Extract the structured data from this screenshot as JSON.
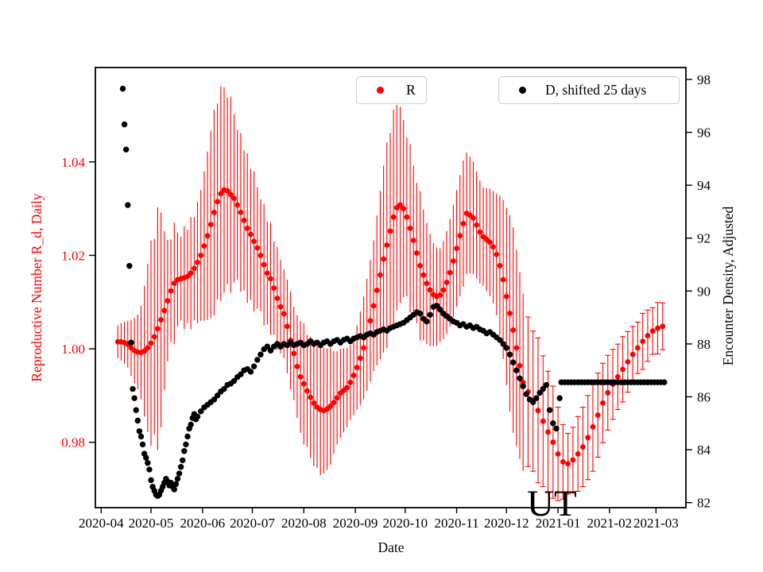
{
  "legend": {
    "r_label": "R",
    "d_label": "D, shifted 25 days"
  },
  "chart_data": {
    "type": "scatter",
    "title": "",
    "grid": false,
    "annotation": {
      "text": "UT",
      "t": 271.5
    },
    "axes": {
      "x": {
        "label": "Date",
        "range_t": [
          -3.5,
          352
        ],
        "ticks": [
          {
            "t": 0,
            "label": "2020-04"
          },
          {
            "t": 30,
            "label": "2020-05"
          },
          {
            "t": 61,
            "label": "2020-06"
          },
          {
            "t": 91,
            "label": "2020-07"
          },
          {
            "t": 122,
            "label": "2020-08"
          },
          {
            "t": 153,
            "label": "2020-09"
          },
          {
            "t": 183,
            "label": "2020-10"
          },
          {
            "t": 214,
            "label": "2020-11"
          },
          {
            "t": 244,
            "label": "2020-12"
          },
          {
            "t": 275,
            "label": "2021-01"
          },
          {
            "t": 306,
            "label": "2021-02"
          },
          {
            "t": 334,
            "label": "2021-03"
          }
        ]
      },
      "left": {
        "label": "Reproductive Number R_d, Daily",
        "color": "#ff0000",
        "range": [
          0.966,
          1.0602
        ],
        "ticks": [
          {
            "v": 0.98,
            "label": "0.98"
          },
          {
            "v": 1.0,
            "label": "1.00"
          },
          {
            "v": 1.02,
            "label": "1.02"
          },
          {
            "v": 1.04,
            "label": "1.04"
          }
        ]
      },
      "right": {
        "label": "Encounter Density, Adjusted",
        "color": "#000000",
        "range": [
          81.81,
          98.45
        ],
        "ticks": [
          {
            "v": 82,
            "label": "82"
          },
          {
            "v": 84,
            "label": "84"
          },
          {
            "v": 86,
            "label": "86"
          },
          {
            "v": 88,
            "label": "88"
          },
          {
            "v": 90,
            "label": "90"
          },
          {
            "v": 92,
            "label": "92"
          },
          {
            "v": 94,
            "label": "94"
          },
          {
            "v": 96,
            "label": "96"
          },
          {
            "v": 98,
            "label": "98"
          }
        ]
      }
    },
    "series": [
      {
        "name": "R",
        "axis": "left",
        "color": "#ff0000",
        "marker": "circle",
        "cap_from": 123,
        "t": [
          10,
          12,
          14,
          16,
          18,
          20,
          22,
          24,
          26,
          28,
          30,
          32,
          34,
          36,
          38,
          40,
          42,
          44,
          46,
          48,
          50,
          52,
          54,
          56,
          58,
          60,
          62,
          64,
          66,
          68,
          70,
          72,
          74,
          76,
          78,
          80,
          82,
          84,
          86,
          88,
          90,
          92,
          94,
          96,
          98,
          100,
          102,
          104,
          106,
          108,
          110,
          112,
          114,
          116,
          118,
          120,
          122,
          124,
          126,
          128,
          130,
          132,
          134,
          136,
          138,
          140,
          142,
          144,
          146,
          148,
          150,
          152,
          154,
          156,
          158,
          160,
          162,
          164,
          166,
          168,
          170,
          172,
          174,
          176,
          178,
          180,
          182,
          184,
          186,
          188,
          190,
          192,
          194,
          196,
          198,
          200,
          202,
          204,
          206,
          208,
          210,
          212,
          214,
          216,
          218,
          220,
          222,
          224,
          226,
          228,
          230,
          232,
          234,
          236,
          238,
          240,
          242,
          244,
          246,
          248,
          250,
          252,
          254,
          257,
          260,
          263,
          266,
          269,
          272,
          275,
          278,
          281,
          284,
          287,
          290,
          293,
          296,
          299,
          302,
          305,
          308,
          311,
          314,
          317,
          320,
          323,
          326,
          329,
          332,
          335,
          338
        ],
        "v": [
          1.0015,
          1.0015,
          1.0013,
          1.001,
          1.0002,
          0.9996,
          0.9993,
          0.9992,
          0.9995,
          1.0002,
          1.0012,
          1.0026,
          1.0043,
          1.0062,
          1.0082,
          1.0103,
          1.0124,
          1.014,
          1.0148,
          1.015,
          1.0152,
          1.0155,
          1.0162,
          1.0172,
          1.0185,
          1.02,
          1.022,
          1.0242,
          1.0266,
          1.0292,
          1.0315,
          1.0332,
          1.034,
          1.0338,
          1.033,
          1.0322,
          1.0308,
          1.0292,
          1.0275,
          1.0258,
          1.0245,
          1.023,
          1.0216,
          1.02,
          1.018,
          1.0162,
          1.015,
          1.013,
          1.0108,
          1.009,
          1.0075,
          1.0048,
          1.0018,
          0.999,
          0.9962,
          0.994,
          0.9925,
          0.991,
          0.9896,
          0.9884,
          0.9875,
          0.987,
          0.9868,
          0.9871,
          0.9877,
          0.9885,
          0.9895,
          0.9905,
          0.9911,
          0.9917,
          0.9928,
          0.9943,
          0.996,
          0.998,
          1.0002,
          1.003,
          1.006,
          1.0092,
          1.0125,
          1.0158,
          1.0192,
          1.0222,
          1.0252,
          1.0282,
          1.0302,
          1.0308,
          1.03,
          1.0282,
          1.0258,
          1.0232,
          1.0205,
          1.0178,
          1.0158,
          1.014,
          1.0126,
          1.0116,
          1.0112,
          1.0115,
          1.0126,
          1.0142,
          1.0163,
          1.0188,
          1.0215,
          1.0242,
          1.0268,
          1.029,
          1.0286,
          1.028,
          1.0265,
          1.025,
          1.024,
          1.0234,
          1.0228,
          1.0218,
          1.0202,
          1.0178,
          1.0148,
          1.0112,
          1.0076,
          1.004,
          1.0002,
          0.9964,
          0.9928,
          0.9908,
          0.9888,
          0.9868,
          0.9845,
          0.9822,
          0.98,
          0.9775,
          0.9758,
          0.9754,
          0.9762,
          0.9775,
          0.979,
          0.981,
          0.9833,
          0.9858,
          0.9884,
          0.9906,
          0.9924,
          0.994,
          0.9956,
          0.9972,
          0.9988,
          1.0002,
          1.0016,
          1.0028,
          1.0038,
          1.0044,
          1.0048
        ],
        "e": [
          0.0035,
          0.004,
          0.0045,
          0.005,
          0.006,
          0.007,
          0.008,
          0.01,
          0.014,
          0.018,
          0.022,
          0.021,
          0.026,
          0.023,
          0.017,
          0.013,
          0.011,
          0.013,
          0.01,
          0.009,
          0.011,
          0.01,
          0.012,
          0.011,
          0.013,
          0.014,
          0.016,
          0.018,
          0.02,
          0.022,
          0.021,
          0.023,
          0.022,
          0.02,
          0.021,
          0.018,
          0.016,
          0.017,
          0.015,
          0.016,
          0.014,
          0.015,
          0.013,
          0.012,
          0.013,
          0.011,
          0.012,
          0.01,
          0.011,
          0.01,
          0.0095,
          0.01,
          0.0105,
          0.01,
          0.011,
          0.012,
          0.013,
          0.012,
          0.013,
          0.0135,
          0.013,
          0.014,
          0.0135,
          0.013,
          0.0125,
          0.011,
          0.01,
          0.0095,
          0.009,
          0.0085,
          0.008,
          0.0085,
          0.009,
          0.01,
          0.011,
          0.012,
          0.013,
          0.014,
          0.016,
          0.018,
          0.02,
          0.022,
          0.021,
          0.023,
          0.022,
          0.021,
          0.019,
          0.017,
          0.018,
          0.016,
          0.015,
          0.016,
          0.014,
          0.013,
          0.012,
          0.011,
          0.0105,
          0.01,
          0.0105,
          0.011,
          0.0115,
          0.012,
          0.0125,
          0.013,
          0.0135,
          0.013,
          0.0125,
          0.012,
          0.0115,
          0.011,
          0.0105,
          0.011,
          0.0115,
          0.012,
          0.013,
          0.015,
          0.017,
          0.019,
          0.021,
          0.022,
          0.021,
          0.02,
          0.019,
          0.016,
          0.015,
          0.0155,
          0.014,
          0.013,
          0.012,
          0.01,
          0.008,
          0.0065,
          0.007,
          0.008,
          0.0085,
          0.009,
          0.0095,
          0.009,
          0.0085,
          0.008,
          0.0075,
          0.007,
          0.007,
          0.0065,
          0.006,
          0.0055,
          0.006,
          0.0055,
          0.005,
          0.0055,
          0.005
        ]
      },
      {
        "name": "D, shifted 25 days",
        "axis": "right",
        "color": "#000000",
        "marker": "circle",
        "t": [
          13,
          14,
          15,
          16,
          17,
          18,
          19,
          20,
          21,
          22,
          23,
          24,
          25,
          26,
          27,
          28,
          29,
          30,
          31,
          32,
          33,
          34,
          35,
          36,
          37,
          38,
          39,
          40,
          41,
          42,
          43,
          44,
          45,
          46,
          47,
          48,
          49,
          50,
          51,
          52,
          53,
          54,
          55,
          56,
          57,
          58,
          60,
          62,
          64,
          66,
          68,
          70,
          72,
          74,
          76,
          78,
          80,
          82,
          84,
          86,
          88,
          90,
          92,
          94,
          96,
          98,
          100,
          102,
          104,
          106,
          108,
          110,
          112,
          114,
          116,
          118,
          120,
          122,
          124,
          126,
          128,
          130,
          132,
          134,
          136,
          138,
          140,
          142,
          144,
          146,
          148,
          150,
          152,
          154,
          156,
          158,
          160,
          162,
          164,
          166,
          168,
          170,
          172,
          174,
          176,
          178,
          180,
          182,
          184,
          186,
          188,
          190,
          192,
          194,
          196,
          198,
          200,
          202,
          204,
          206,
          208,
          210,
          212,
          214,
          216,
          218,
          220,
          222,
          224,
          226,
          228,
          230,
          232,
          234,
          236,
          238,
          240,
          242,
          244,
          246,
          248,
          250,
          252,
          254,
          256,
          258,
          260,
          262,
          264,
          266,
          268,
          270,
          272,
          274,
          276,
          277,
          279,
          281,
          283,
          285,
          287,
          289,
          291,
          293,
          295,
          297,
          299,
          301,
          303,
          305,
          307,
          309,
          311,
          313,
          315,
          317,
          319,
          321,
          323,
          325,
          327,
          329,
          331,
          333,
          335,
          337,
          339
        ],
        "v": [
          97.65,
          96.3,
          95.35,
          93.25,
          90.95,
          88.05,
          86.3,
          85.95,
          85.5,
          85.1,
          84.7,
          84.5,
          84.2,
          83.85,
          83.7,
          83.5,
          83.25,
          82.85,
          82.6,
          82.45,
          82.3,
          82.25,
          82.3,
          82.45,
          82.6,
          82.75,
          82.9,
          82.8,
          82.65,
          82.75,
          82.6,
          82.5,
          82.7,
          82.9,
          83.1,
          83.35,
          83.6,
          83.95,
          84.2,
          84.5,
          84.8,
          84.95,
          85.2,
          85.35,
          85.15,
          85.25,
          85.45,
          85.6,
          85.7,
          85.8,
          85.9,
          86.05,
          86.2,
          86.3,
          86.45,
          86.5,
          86.6,
          86.75,
          86.85,
          87.0,
          87.05,
          86.95,
          87.15,
          87.4,
          87.6,
          87.8,
          87.9,
          87.75,
          87.9,
          88.0,
          87.9,
          88.0,
          87.95,
          88.05,
          87.95,
          88.0,
          88.05,
          87.95,
          88.0,
          88.1,
          88.0,
          88.05,
          87.95,
          88.05,
          88.1,
          88.0,
          88.1,
          88.15,
          88.05,
          88.15,
          88.2,
          88.1,
          88.2,
          88.25,
          88.3,
          88.25,
          88.35,
          88.4,
          88.35,
          88.45,
          88.5,
          88.55,
          88.5,
          88.6,
          88.65,
          88.7,
          88.75,
          88.8,
          88.9,
          89.0,
          89.1,
          89.2,
          89.15,
          88.95,
          88.85,
          89.1,
          89.4,
          89.45,
          89.3,
          89.15,
          89.05,
          88.95,
          88.85,
          88.8,
          88.7,
          88.75,
          88.65,
          88.7,
          88.6,
          88.65,
          88.55,
          88.5,
          88.4,
          88.45,
          88.35,
          88.25,
          88.15,
          88.0,
          87.85,
          87.6,
          87.3,
          87.0,
          86.7,
          86.4,
          86.1,
          85.9,
          85.8,
          85.95,
          86.15,
          86.3,
          86.45,
          85.5,
          85.0,
          84.8,
          85.95,
          86.55,
          86.55,
          86.55,
          86.55,
          86.55,
          86.55,
          86.55,
          86.55,
          86.55,
          86.55,
          86.55,
          86.55,
          86.55,
          86.55,
          86.55,
          86.55,
          86.55,
          86.55,
          86.55,
          86.55,
          86.55,
          86.55,
          86.55,
          86.55,
          86.55,
          86.55,
          86.55,
          86.55,
          86.55,
          86.55,
          86.55,
          86.55
        ]
      }
    ]
  }
}
